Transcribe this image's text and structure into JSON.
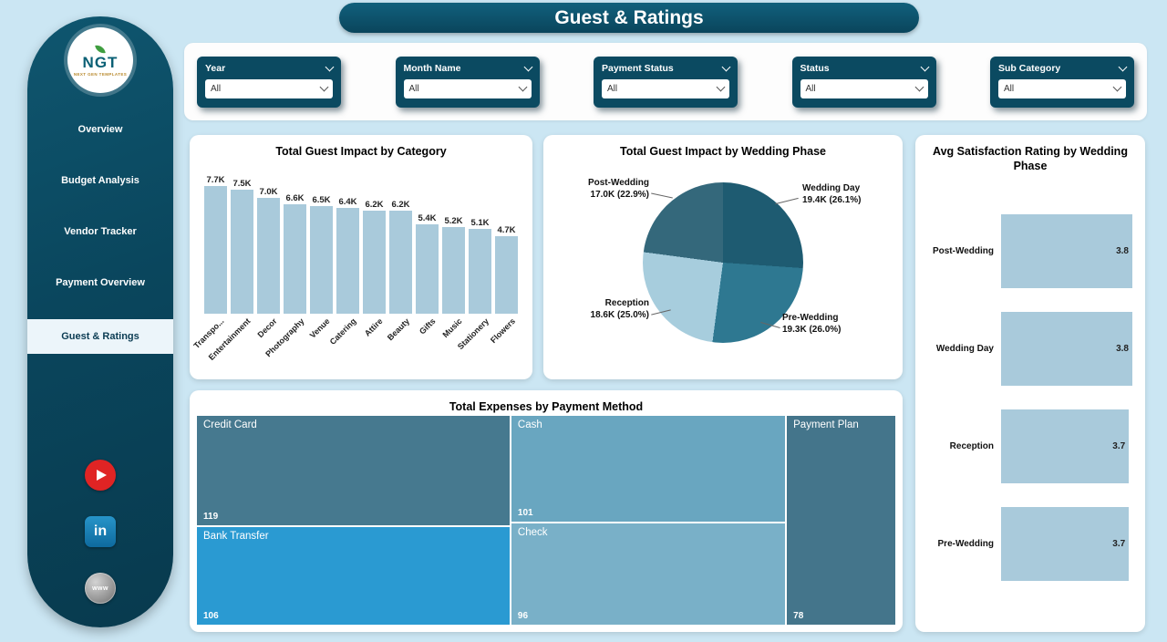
{
  "header": {
    "title": "Guest & Ratings"
  },
  "sidebar": {
    "logo": {
      "text": "NGT",
      "subtext": "NEXT GEN TEMPLATES"
    },
    "items": [
      {
        "label": "Overview",
        "active": false
      },
      {
        "label": "Budget Analysis",
        "active": false
      },
      {
        "label": "Vendor Tracker",
        "active": false
      },
      {
        "label": "Payment Overview",
        "active": false
      },
      {
        "label": "Guest & Ratings",
        "active": true
      }
    ],
    "social": [
      {
        "name": "youtube"
      },
      {
        "name": "linkedin",
        "glyph": "in"
      },
      {
        "name": "website",
        "glyph": "www"
      }
    ]
  },
  "filters": [
    {
      "label": "Year",
      "value": "All"
    },
    {
      "label": "Month Name",
      "value": "All"
    },
    {
      "label": "Payment Status",
      "value": "All"
    },
    {
      "label": "Status",
      "value": "All"
    },
    {
      "label": "Sub Category",
      "value": "All"
    }
  ],
  "chart_data": [
    {
      "type": "bar",
      "title": "Total Guest Impact by Category",
      "categories": [
        "Transpo...",
        "Entertainment",
        "Decor",
        "Photography",
        "Venue",
        "Catering",
        "Attire",
        "Beauty",
        "Gifts",
        "Music",
        "Stationery",
        "Flowers"
      ],
      "values": [
        7700,
        7500,
        7000,
        6600,
        6500,
        6400,
        6200,
        6200,
        5400,
        5200,
        5100,
        4700
      ],
      "value_labels": [
        "7.7K",
        "7.5K",
        "7.0K",
        "6.6K",
        "6.5K",
        "6.4K",
        "6.2K",
        "6.2K",
        "5.4K",
        "5.2K",
        "5.1K",
        "4.7K"
      ],
      "ylim": [
        0,
        7700
      ],
      "bar_color": "#a9cadb"
    },
    {
      "type": "pie",
      "title": "Total Guest Impact by Wedding Phase",
      "slices": [
        {
          "label": "Wedding Day",
          "value": 19400,
          "detail": "19.4K (26.1%)",
          "pct": 26.1,
          "color": "#1e5b71"
        },
        {
          "label": "Pre-Wedding",
          "value": 19300,
          "detail": "19.3K (26.0%)",
          "pct": 26.0,
          "color": "#2e7891"
        },
        {
          "label": "Reception",
          "value": 18600,
          "detail": "18.6K (25.0%)",
          "pct": 25.0,
          "color": "#a7cddd"
        },
        {
          "label": "Post-Wedding",
          "value": 17000,
          "detail": "17.0K (22.9%)",
          "pct": 22.9,
          "color": "#34687b"
        }
      ]
    },
    {
      "type": "bar",
      "orientation": "horizontal",
      "title": "Avg Satisfaction Rating by Wedding Phase",
      "categories": [
        "Post-Wedding",
        "Wedding Day",
        "Reception",
        "Pre-Wedding"
      ],
      "values": [
        3.8,
        3.8,
        3.7,
        3.7
      ],
      "value_labels": [
        "3.8",
        "3.8",
        "3.7",
        "3.7"
      ],
      "xlim": [
        0,
        3.8
      ],
      "bar_color": "#a9cadb"
    },
    {
      "type": "treemap",
      "title": "Total Expenses by Payment Method",
      "tiles": [
        {
          "label": "Credit Card",
          "value": 119,
          "color": "#46798f"
        },
        {
          "label": "Bank Transfer",
          "value": 106,
          "color": "#2a9ad2"
        },
        {
          "label": "Cash",
          "value": 101,
          "color": "#69a6c0"
        },
        {
          "label": "Check",
          "value": 96,
          "color": "#79b0c8"
        },
        {
          "label": "Payment Plan",
          "value": 78,
          "color": "#44758b"
        }
      ],
      "layout_columns": [
        [
          0,
          1
        ],
        [
          2,
          3
        ],
        [
          4
        ]
      ]
    }
  ],
  "colors": {
    "background": "#cbe6f3",
    "panel": "#0b4a61",
    "card": "#ffffff",
    "accent_bar": "#a9cadb"
  }
}
